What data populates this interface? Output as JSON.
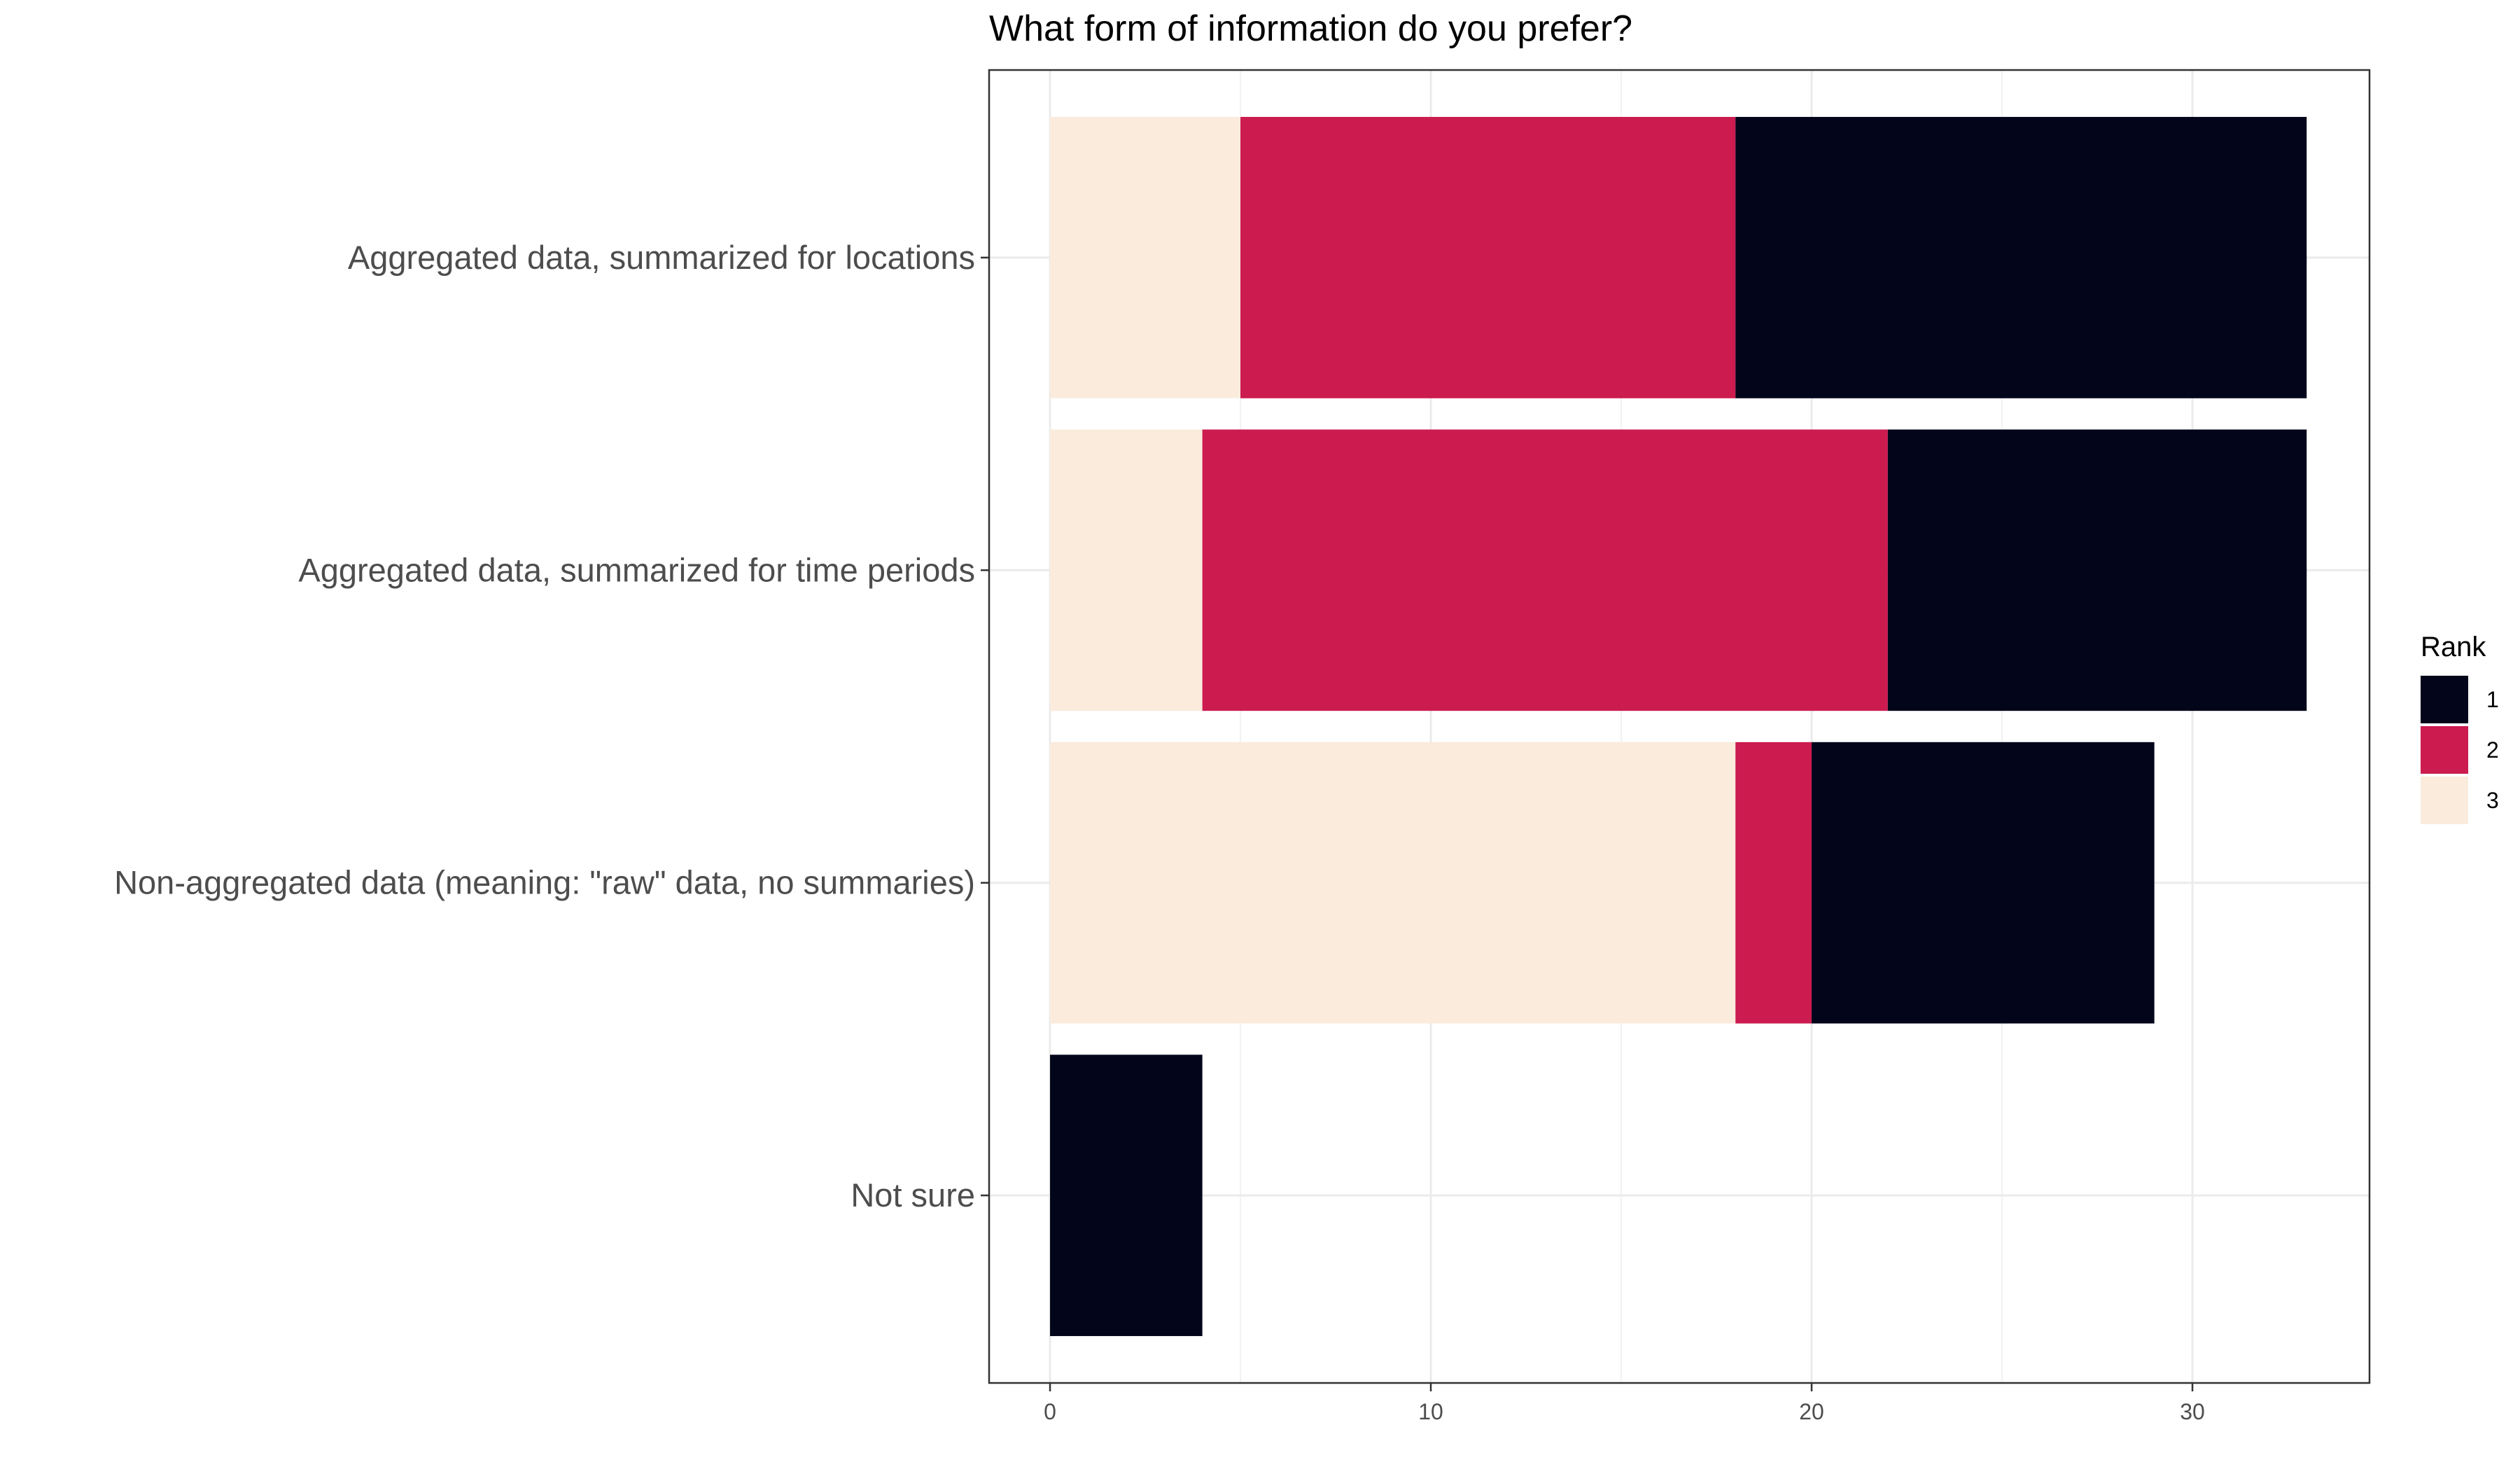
{
  "chart_data": {
    "type": "bar",
    "orientation": "horizontal",
    "stacked": true,
    "title": "What form of information do you prefer?",
    "xlabel": "",
    "ylabel": "",
    "categories": [
      "Aggregated data, summarized for locations",
      "Aggregated data, summarized for time periods",
      "Non-aggregated data (meaning: \"raw\" data, no summaries)",
      "Not sure"
    ],
    "series": [
      {
        "name": "3",
        "color": "#FAEBDD",
        "values": [
          5,
          4,
          18,
          0
        ]
      },
      {
        "name": "2",
        "color": "#CB1B4F",
        "values": [
          13,
          18,
          2,
          0
        ]
      },
      {
        "name": "1",
        "color": "#03051A",
        "values": [
          15,
          11,
          9,
          4
        ]
      }
    ],
    "xlim": [
      -1.6,
      34.65
    ],
    "xticks": [
      0,
      10,
      20,
      30
    ],
    "grid": true,
    "legend": {
      "title": "Rank",
      "position": "right",
      "order": [
        "1",
        "2",
        "3"
      ]
    }
  }
}
